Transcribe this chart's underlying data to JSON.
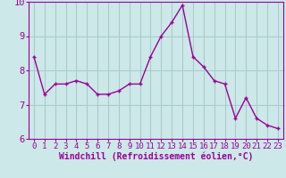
{
  "x": [
    0,
    1,
    2,
    3,
    4,
    5,
    6,
    7,
    8,
    9,
    10,
    11,
    12,
    13,
    14,
    15,
    16,
    17,
    18,
    19,
    20,
    21,
    22,
    23
  ],
  "y": [
    8.4,
    7.3,
    7.6,
    7.6,
    7.7,
    7.6,
    7.3,
    7.3,
    7.4,
    7.6,
    7.6,
    8.4,
    9.0,
    9.4,
    9.9,
    8.4,
    8.1,
    7.7,
    7.6,
    6.6,
    7.2,
    6.6,
    6.4,
    6.3
  ],
  "line_color": "#990099",
  "marker": "+",
  "xlabel": "Windchill (Refroidissement éolien,°C)",
  "ylabel": "",
  "ylim": [
    6,
    10
  ],
  "xlim": [
    -0.5,
    23.5
  ],
  "yticks": [
    6,
    7,
    8,
    9,
    10
  ],
  "xticks": [
    0,
    1,
    2,
    3,
    4,
    5,
    6,
    7,
    8,
    9,
    10,
    11,
    12,
    13,
    14,
    15,
    16,
    17,
    18,
    19,
    20,
    21,
    22,
    23
  ],
  "bg_color": "#cce8e8",
  "grid_color": "#aacccc",
  "tick_color": "#990099",
  "label_color": "#990099",
  "font_size": 6.5,
  "xlabel_fontsize": 7.0,
  "markersize": 3.5,
  "linewidth": 1.0
}
